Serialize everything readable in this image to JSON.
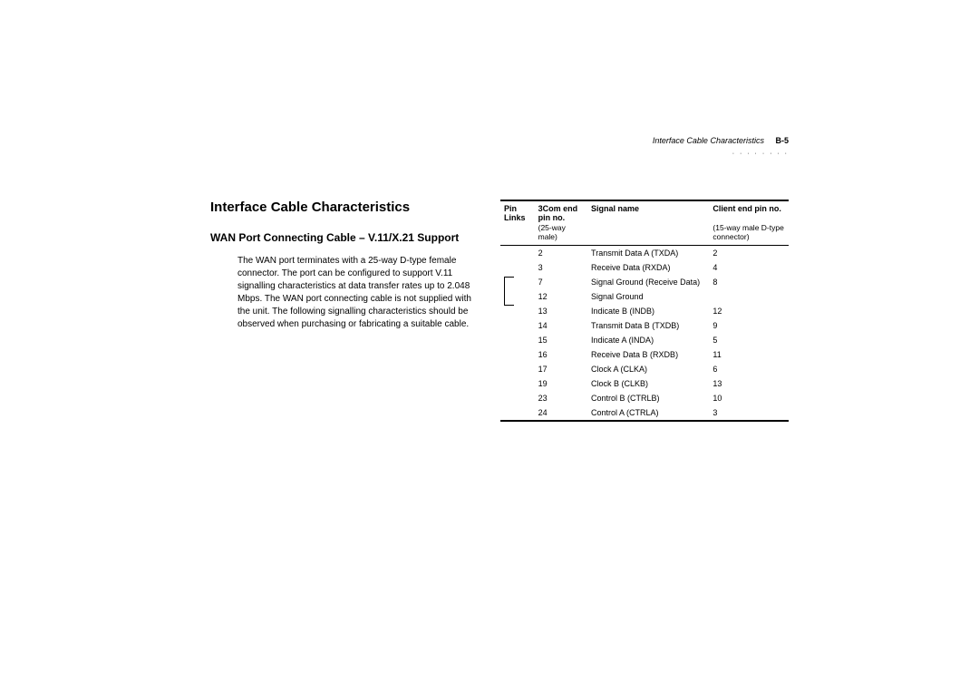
{
  "header": {
    "running_title": "Interface Cable Characteristics",
    "page_number": "B-5"
  },
  "title": "Interface Cable Characteristics",
  "subtitle": "WAN Port Connecting Cable – V.11/X.21 Support",
  "body": "The WAN port terminates with a 25-way D-type female connector. The port can be configured to support V.11 signalling characteristics at data transfer rates up to 2.048 Mbps. The WAN port connecting cable is not supplied with the unit. The following signalling characteristics should be observed when purchasing or fabricating a suitable cable.",
  "table": {
    "headers": {
      "links": "Pin Links",
      "pin": "3Com end pin no.",
      "pin_sub": "(25-way male)",
      "signal": "Signal name",
      "client": "Client end pin no.",
      "client_sub": "(15-way male D-type connector)"
    },
    "rows": [
      {
        "links": "",
        "pin": "2",
        "signal": "Transmit Data A (TXDA)",
        "client": "2"
      },
      {
        "links": "",
        "pin": "3",
        "signal": "Receive Data (RXDA)",
        "client": "4"
      },
      {
        "links": "b1",
        "pin": "7",
        "signal": "Signal Ground (Receive Data)",
        "client": "8"
      },
      {
        "links": "b2",
        "pin": "12",
        "signal": "Signal Ground",
        "client": ""
      },
      {
        "links": "",
        "pin": "13",
        "signal": "Indicate B (INDB)",
        "client": "12"
      },
      {
        "links": "",
        "pin": "14",
        "signal": "Transmit Data B (TXDB)",
        "client": "9"
      },
      {
        "links": "",
        "pin": "15",
        "signal": "Indicate A (INDA)",
        "client": "5"
      },
      {
        "links": "",
        "pin": "16",
        "signal": "Receive Data B (RXDB)",
        "client": "11"
      },
      {
        "links": "",
        "pin": "17",
        "signal": "Clock A (CLKA)",
        "client": "6"
      },
      {
        "links": "",
        "pin": "19",
        "signal": "Clock B (CLKB)",
        "client": "13"
      },
      {
        "links": "",
        "pin": "23",
        "signal": "Control B (CTRLB)",
        "client": "10"
      },
      {
        "links": "",
        "pin": "24",
        "signal": "Control A (CTRLA)",
        "client": "3"
      }
    ]
  }
}
